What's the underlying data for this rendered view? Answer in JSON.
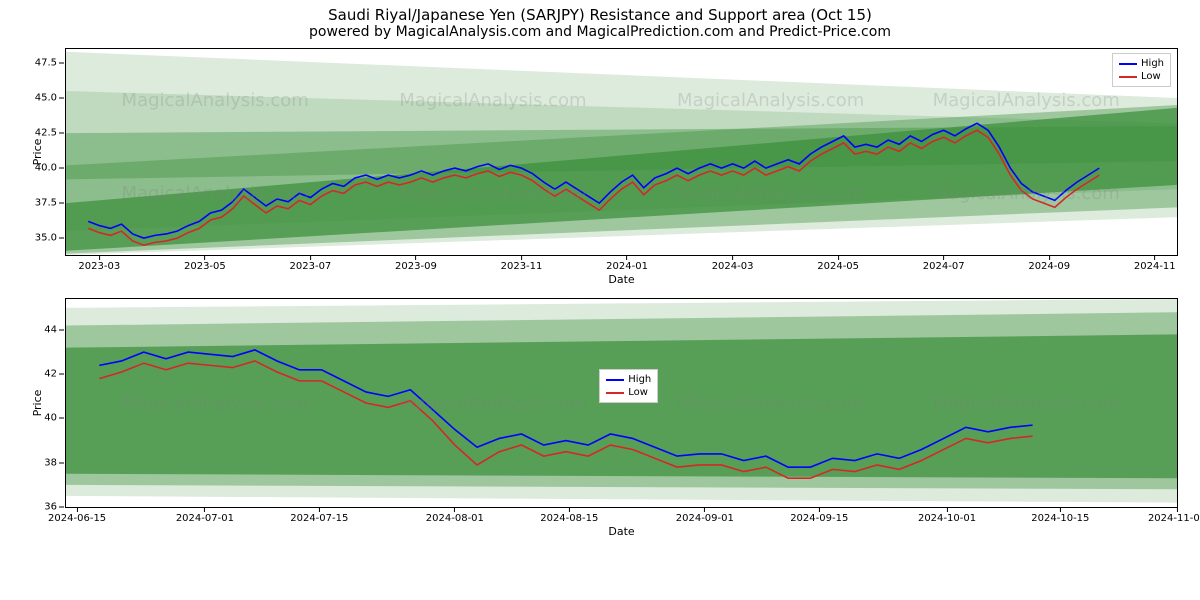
{
  "title": "Saudi Riyal/Japanese Yen (SARJPY) Resistance and Support area (Oct 15)",
  "subtitle": "powered by MagicalAnalysis.com and MagicalPrediction.com and Predict-Price.com",
  "watermark_text": "MagicalAnalysis.com",
  "legend": {
    "high": "High",
    "low": "Low"
  },
  "colors": {
    "high_line": "#0000ff",
    "low_line": "#d62728",
    "band_fill": "#3b8f3b",
    "band_opacity_core": 0.72,
    "band_opacity_mid": 0.38,
    "band_opacity_outer": 0.18,
    "grid": "#e0e0e0",
    "axis": "#000000",
    "background": "#ffffff"
  },
  "chart1": {
    "ylabel": "Price",
    "xlabel": "Date",
    "ylim": [
      33.8,
      48.5
    ],
    "yticks": [
      35.0,
      37.5,
      40.0,
      42.5,
      45.0,
      47.5
    ],
    "xlim": [
      0,
      100
    ],
    "xticks": [
      {
        "pos": 3.0,
        "label": "2023-03"
      },
      {
        "pos": 12.5,
        "label": "2023-05"
      },
      {
        "pos": 22.0,
        "label": "2023-07"
      },
      {
        "pos": 31.5,
        "label": "2023-09"
      },
      {
        "pos": 41.0,
        "label": "2023-11"
      },
      {
        "pos": 50.5,
        "label": "2024-01"
      },
      {
        "pos": 60.0,
        "label": "2024-03"
      },
      {
        "pos": 69.5,
        "label": "2024-05"
      },
      {
        "pos": 79.0,
        "label": "2024-07"
      },
      {
        "pos": 88.5,
        "label": "2024-09"
      },
      {
        "pos": 98.0,
        "label": "2024-11"
      }
    ],
    "bands": [
      {
        "o": "outer",
        "x": [
          0,
          100,
          100,
          0
        ],
        "y": [
          45.5,
          43.2,
          36.5,
          33.8
        ]
      },
      {
        "o": "outer",
        "x": [
          0,
          100,
          100,
          0
        ],
        "y": [
          48.3,
          45.0,
          38.5,
          35.5
        ]
      },
      {
        "o": "mid",
        "x": [
          0,
          100,
          100,
          0
        ],
        "y": [
          40.2,
          44.5,
          37.2,
          33.9
        ]
      },
      {
        "o": "core",
        "x": [
          0,
          100,
          100,
          0
        ],
        "y": [
          37.5,
          44.3,
          38.8,
          34.1
        ]
      },
      {
        "o": "mid",
        "x": [
          0,
          100,
          100,
          0
        ],
        "y": [
          42.5,
          43.0,
          40.5,
          39.2
        ]
      }
    ],
    "high": [
      [
        2,
        36.2
      ],
      [
        3,
        35.9
      ],
      [
        4,
        35.7
      ],
      [
        5,
        36.0
      ],
      [
        6,
        35.3
      ],
      [
        7,
        35.0
      ],
      [
        8,
        35.2
      ],
      [
        9,
        35.3
      ],
      [
        10,
        35.5
      ],
      [
        11,
        35.9
      ],
      [
        12,
        36.2
      ],
      [
        13,
        36.8
      ],
      [
        14,
        37.0
      ],
      [
        15,
        37.6
      ],
      [
        16,
        38.5
      ],
      [
        17,
        37.9
      ],
      [
        18,
        37.3
      ],
      [
        19,
        37.8
      ],
      [
        20,
        37.6
      ],
      [
        21,
        38.2
      ],
      [
        22,
        37.9
      ],
      [
        23,
        38.5
      ],
      [
        24,
        38.9
      ],
      [
        25,
        38.7
      ],
      [
        26,
        39.3
      ],
      [
        27,
        39.5
      ],
      [
        28,
        39.2
      ],
      [
        29,
        39.5
      ],
      [
        30,
        39.3
      ],
      [
        31,
        39.5
      ],
      [
        32,
        39.8
      ],
      [
        33,
        39.5
      ],
      [
        34,
        39.8
      ],
      [
        35,
        40.0
      ],
      [
        36,
        39.8
      ],
      [
        37,
        40.1
      ],
      [
        38,
        40.3
      ],
      [
        39,
        39.9
      ],
      [
        40,
        40.2
      ],
      [
        41,
        40.0
      ],
      [
        42,
        39.6
      ],
      [
        43,
        39.0
      ],
      [
        44,
        38.5
      ],
      [
        45,
        39.0
      ],
      [
        46,
        38.5
      ],
      [
        47,
        38.0
      ],
      [
        48,
        37.5
      ],
      [
        49,
        38.3
      ],
      [
        50,
        39.0
      ],
      [
        51,
        39.5
      ],
      [
        52,
        38.6
      ],
      [
        53,
        39.3
      ],
      [
        54,
        39.6
      ],
      [
        55,
        40.0
      ],
      [
        56,
        39.6
      ],
      [
        57,
        40.0
      ],
      [
        58,
        40.3
      ],
      [
        59,
        40.0
      ],
      [
        60,
        40.3
      ],
      [
        61,
        40.0
      ],
      [
        62,
        40.5
      ],
      [
        63,
        40.0
      ],
      [
        64,
        40.3
      ],
      [
        65,
        40.6
      ],
      [
        66,
        40.3
      ],
      [
        67,
        41.0
      ],
      [
        68,
        41.5
      ],
      [
        69,
        41.9
      ],
      [
        70,
        42.3
      ],
      [
        71,
        41.5
      ],
      [
        72,
        41.7
      ],
      [
        73,
        41.5
      ],
      [
        74,
        42.0
      ],
      [
        75,
        41.7
      ],
      [
        76,
        42.3
      ],
      [
        77,
        41.9
      ],
      [
        78,
        42.4
      ],
      [
        79,
        42.7
      ],
      [
        80,
        42.3
      ],
      [
        81,
        42.8
      ],
      [
        82,
        43.2
      ],
      [
        83,
        42.7
      ],
      [
        84,
        41.5
      ],
      [
        85,
        40.0
      ],
      [
        86,
        38.9
      ],
      [
        87,
        38.3
      ],
      [
        88,
        38.0
      ],
      [
        89,
        37.7
      ],
      [
        90,
        38.4
      ],
      [
        91,
        39.0
      ],
      [
        92,
        39.5
      ],
      [
        93,
        40.0
      ]
    ],
    "low": [
      [
        2,
        35.7
      ],
      [
        3,
        35.4
      ],
      [
        4,
        35.2
      ],
      [
        5,
        35.5
      ],
      [
        6,
        34.8
      ],
      [
        7,
        34.5
      ],
      [
        8,
        34.7
      ],
      [
        9,
        34.8
      ],
      [
        10,
        35.0
      ],
      [
        11,
        35.4
      ],
      [
        12,
        35.7
      ],
      [
        13,
        36.3
      ],
      [
        14,
        36.5
      ],
      [
        15,
        37.1
      ],
      [
        16,
        38.0
      ],
      [
        17,
        37.4
      ],
      [
        18,
        36.8
      ],
      [
        19,
        37.3
      ],
      [
        20,
        37.1
      ],
      [
        21,
        37.7
      ],
      [
        22,
        37.4
      ],
      [
        23,
        38.0
      ],
      [
        24,
        38.4
      ],
      [
        25,
        38.2
      ],
      [
        26,
        38.8
      ],
      [
        27,
        39.0
      ],
      [
        28,
        38.7
      ],
      [
        29,
        39.0
      ],
      [
        30,
        38.8
      ],
      [
        31,
        39.0
      ],
      [
        32,
        39.3
      ],
      [
        33,
        39.0
      ],
      [
        34,
        39.3
      ],
      [
        35,
        39.5
      ],
      [
        36,
        39.3
      ],
      [
        37,
        39.6
      ],
      [
        38,
        39.8
      ],
      [
        39,
        39.4
      ],
      [
        40,
        39.7
      ],
      [
        41,
        39.5
      ],
      [
        42,
        39.1
      ],
      [
        43,
        38.5
      ],
      [
        44,
        38.0
      ],
      [
        45,
        38.5
      ],
      [
        46,
        38.0
      ],
      [
        47,
        37.5
      ],
      [
        48,
        37.0
      ],
      [
        49,
        37.8
      ],
      [
        50,
        38.5
      ],
      [
        51,
        39.0
      ],
      [
        52,
        38.1
      ],
      [
        53,
        38.8
      ],
      [
        54,
        39.1
      ],
      [
        55,
        39.5
      ],
      [
        56,
        39.1
      ],
      [
        57,
        39.5
      ],
      [
        58,
        39.8
      ],
      [
        59,
        39.5
      ],
      [
        60,
        39.8
      ],
      [
        61,
        39.5
      ],
      [
        62,
        40.0
      ],
      [
        63,
        39.5
      ],
      [
        64,
        39.8
      ],
      [
        65,
        40.1
      ],
      [
        66,
        39.8
      ],
      [
        67,
        40.5
      ],
      [
        68,
        41.0
      ],
      [
        69,
        41.4
      ],
      [
        70,
        41.8
      ],
      [
        71,
        41.0
      ],
      [
        72,
        41.2
      ],
      [
        73,
        41.0
      ],
      [
        74,
        41.5
      ],
      [
        75,
        41.2
      ],
      [
        76,
        41.8
      ],
      [
        77,
        41.4
      ],
      [
        78,
        41.9
      ],
      [
        79,
        42.2
      ],
      [
        80,
        41.8
      ],
      [
        81,
        42.3
      ],
      [
        82,
        42.7
      ],
      [
        83,
        42.2
      ],
      [
        84,
        41.0
      ],
      [
        85,
        39.5
      ],
      [
        86,
        38.4
      ],
      [
        87,
        37.8
      ],
      [
        88,
        37.5
      ],
      [
        89,
        37.2
      ],
      [
        90,
        37.9
      ],
      [
        91,
        38.5
      ],
      [
        92,
        39.0
      ],
      [
        93,
        39.5
      ]
    ]
  },
  "chart2": {
    "ylabel": "Price",
    "xlabel": "Date",
    "ylim": [
      36.0,
      45.4
    ],
    "yticks": [
      36,
      38,
      40,
      42,
      44
    ],
    "xlim": [
      0,
      100
    ],
    "xticks": [
      {
        "pos": 1.0,
        "label": "2024-06-15"
      },
      {
        "pos": 12.5,
        "label": "2024-07-01"
      },
      {
        "pos": 22.8,
        "label": "2024-07-15"
      },
      {
        "pos": 35.0,
        "label": "2024-08-01"
      },
      {
        "pos": 45.3,
        "label": "2024-08-15"
      },
      {
        "pos": 57.5,
        "label": "2024-09-01"
      },
      {
        "pos": 67.8,
        "label": "2024-09-15"
      },
      {
        "pos": 79.3,
        "label": "2024-10-01"
      },
      {
        "pos": 89.5,
        "label": "2024-10-15"
      },
      {
        "pos": 100.0,
        "label": "2024-11-01"
      }
    ],
    "bands": [
      {
        "o": "outer",
        "x": [
          0,
          100,
          100,
          0
        ],
        "y": [
          45.0,
          45.4,
          36.2,
          36.5
        ]
      },
      {
        "o": "mid",
        "x": [
          0,
          100,
          100,
          0
        ],
        "y": [
          44.2,
          44.8,
          36.8,
          37.0
        ]
      },
      {
        "o": "core",
        "x": [
          0,
          100,
          100,
          0
        ],
        "y": [
          43.2,
          43.8,
          37.3,
          37.5
        ]
      }
    ],
    "high": [
      [
        3,
        42.4
      ],
      [
        5,
        42.6
      ],
      [
        7,
        43.0
      ],
      [
        9,
        42.7
      ],
      [
        11,
        43.0
      ],
      [
        13,
        42.9
      ],
      [
        15,
        42.8
      ],
      [
        17,
        43.1
      ],
      [
        19,
        42.6
      ],
      [
        21,
        42.2
      ],
      [
        23,
        42.2
      ],
      [
        25,
        41.7
      ],
      [
        27,
        41.2
      ],
      [
        29,
        41.0
      ],
      [
        31,
        41.3
      ],
      [
        33,
        40.4
      ],
      [
        35,
        39.5
      ],
      [
        37,
        38.7
      ],
      [
        39,
        39.1
      ],
      [
        41,
        39.3
      ],
      [
        43,
        38.8
      ],
      [
        45,
        39.0
      ],
      [
        47,
        38.8
      ],
      [
        49,
        39.3
      ],
      [
        51,
        39.1
      ],
      [
        53,
        38.7
      ],
      [
        55,
        38.3
      ],
      [
        57,
        38.4
      ],
      [
        59,
        38.4
      ],
      [
        61,
        38.1
      ],
      [
        63,
        38.3
      ],
      [
        65,
        37.8
      ],
      [
        67,
        37.8
      ],
      [
        69,
        38.2
      ],
      [
        71,
        38.1
      ],
      [
        73,
        38.4
      ],
      [
        75,
        38.2
      ],
      [
        77,
        38.6
      ],
      [
        79,
        39.1
      ],
      [
        81,
        39.6
      ],
      [
        83,
        39.4
      ],
      [
        85,
        39.6
      ],
      [
        87,
        39.7
      ]
    ],
    "low": [
      [
        3,
        41.8
      ],
      [
        5,
        42.1
      ],
      [
        7,
        42.5
      ],
      [
        9,
        42.2
      ],
      [
        11,
        42.5
      ],
      [
        13,
        42.4
      ],
      [
        15,
        42.3
      ],
      [
        17,
        42.6
      ],
      [
        19,
        42.1
      ],
      [
        21,
        41.7
      ],
      [
        23,
        41.7
      ],
      [
        25,
        41.2
      ],
      [
        27,
        40.7
      ],
      [
        29,
        40.5
      ],
      [
        31,
        40.8
      ],
      [
        33,
        39.9
      ],
      [
        35,
        38.8
      ],
      [
        37,
        37.9
      ],
      [
        39,
        38.5
      ],
      [
        41,
        38.8
      ],
      [
        43,
        38.3
      ],
      [
        45,
        38.5
      ],
      [
        47,
        38.3
      ],
      [
        49,
        38.8
      ],
      [
        51,
        38.6
      ],
      [
        53,
        38.2
      ],
      [
        55,
        37.8
      ],
      [
        57,
        37.9
      ],
      [
        59,
        37.9
      ],
      [
        61,
        37.6
      ],
      [
        63,
        37.8
      ],
      [
        65,
        37.3
      ],
      [
        67,
        37.3
      ],
      [
        69,
        37.7
      ],
      [
        71,
        37.6
      ],
      [
        73,
        37.9
      ],
      [
        75,
        37.7
      ],
      [
        77,
        38.1
      ],
      [
        79,
        38.6
      ],
      [
        81,
        39.1
      ],
      [
        83,
        38.9
      ],
      [
        85,
        39.1
      ],
      [
        87,
        39.2
      ]
    ]
  }
}
